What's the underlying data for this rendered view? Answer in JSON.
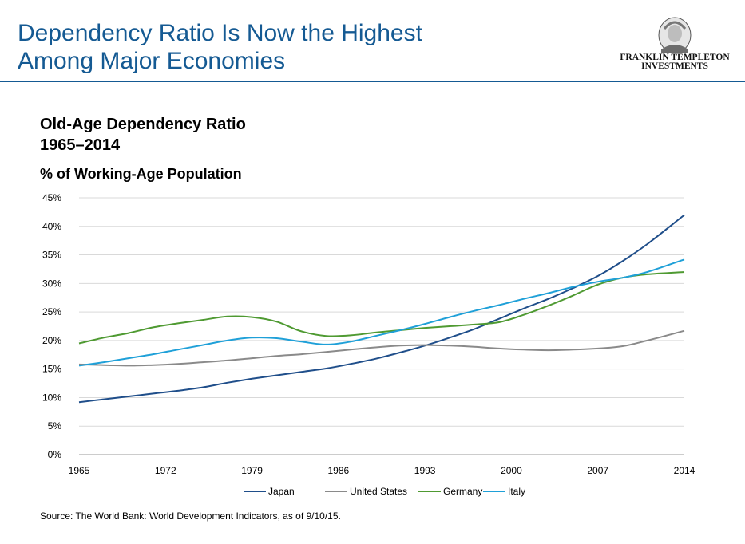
{
  "header": {
    "title_line1": "Dependency Ratio Is Now the Highest",
    "title_line2": "Among Major Economies",
    "logo_line1": "FRANKLIN TEMPLETON",
    "logo_line2": "INVESTMENTS"
  },
  "chart_data": {
    "type": "line",
    "title_line1": "Old-Age Dependency Ratio",
    "title_line2": "1965–2014",
    "ylabel": "% of Working-Age Population",
    "xlabel": "",
    "xlim": [
      1965,
      2014
    ],
    "ylim": [
      0,
      45
    ],
    "x_ticks": [
      1965,
      1972,
      1979,
      1986,
      1993,
      2000,
      2007,
      2014
    ],
    "y_ticks": [
      0,
      5,
      10,
      15,
      20,
      25,
      30,
      35,
      40,
      45
    ],
    "y_tick_labels": [
      "0%",
      "5%",
      "10%",
      "15%",
      "20%",
      "25%",
      "30%",
      "35%",
      "40%",
      "45%"
    ],
    "grid": "horizontal",
    "legend_position": "bottom",
    "series": [
      {
        "name": "Japan",
        "color": "#1f4e8a",
        "x": [
          1965,
          1967,
          1969,
          1971,
          1973,
          1975,
          1977,
          1979,
          1981,
          1983,
          1985,
          1987,
          1989,
          1991,
          1993,
          1995,
          1997,
          1999,
          2001,
          2003,
          2005,
          2007,
          2009,
          2011,
          2014
        ],
        "y": [
          9.2,
          9.7,
          10.2,
          10.7,
          11.2,
          11.8,
          12.6,
          13.3,
          13.9,
          14.5,
          15.1,
          15.9,
          16.8,
          17.9,
          19.1,
          20.5,
          22.0,
          23.8,
          25.6,
          27.3,
          29.2,
          31.3,
          33.9,
          36.9,
          42.0
        ]
      },
      {
        "name": "United States",
        "color": "#8a8a8a",
        "x": [
          1965,
          1967,
          1969,
          1971,
          1973,
          1975,
          1977,
          1979,
          1981,
          1983,
          1985,
          1987,
          1989,
          1991,
          1993,
          1995,
          1997,
          1999,
          2001,
          2003,
          2005,
          2007,
          2009,
          2011,
          2014
        ],
        "y": [
          15.8,
          15.7,
          15.6,
          15.7,
          15.9,
          16.2,
          16.5,
          16.9,
          17.3,
          17.6,
          18.0,
          18.4,
          18.8,
          19.1,
          19.2,
          19.1,
          18.9,
          18.6,
          18.4,
          18.3,
          18.4,
          18.6,
          19.0,
          20.0,
          21.7
        ]
      },
      {
        "name": "Germany",
        "color": "#4f9a32",
        "x": [
          1965,
          1967,
          1969,
          1971,
          1973,
          1975,
          1977,
          1979,
          1981,
          1983,
          1985,
          1987,
          1989,
          1991,
          1993,
          1995,
          1997,
          1999,
          2001,
          2003,
          2005,
          2007,
          2009,
          2011,
          2014
        ],
        "y": [
          19.5,
          20.5,
          21.3,
          22.3,
          23.0,
          23.6,
          24.2,
          24.1,
          23.3,
          21.6,
          20.8,
          20.9,
          21.4,
          21.8,
          22.2,
          22.5,
          22.8,
          23.2,
          24.5,
          26.1,
          27.9,
          29.8,
          31.0,
          31.6,
          32.0
        ]
      },
      {
        "name": "Italy",
        "color": "#1fa0d8",
        "x": [
          1965,
          1967,
          1969,
          1971,
          1973,
          1975,
          1977,
          1979,
          1981,
          1983,
          1985,
          1987,
          1989,
          1991,
          1993,
          1995,
          1997,
          1999,
          2001,
          2003,
          2005,
          2007,
          2009,
          2011,
          2014
        ],
        "y": [
          15.6,
          16.2,
          16.9,
          17.6,
          18.4,
          19.2,
          20.0,
          20.5,
          20.4,
          19.8,
          19.3,
          19.8,
          20.8,
          21.8,
          22.9,
          24.1,
          25.2,
          26.2,
          27.3,
          28.3,
          29.4,
          30.3,
          31.0,
          32.0,
          34.2
        ]
      }
    ]
  },
  "footer": {
    "source": "Source: The World Bank: World Development Indicators, as of 9/10/15."
  }
}
